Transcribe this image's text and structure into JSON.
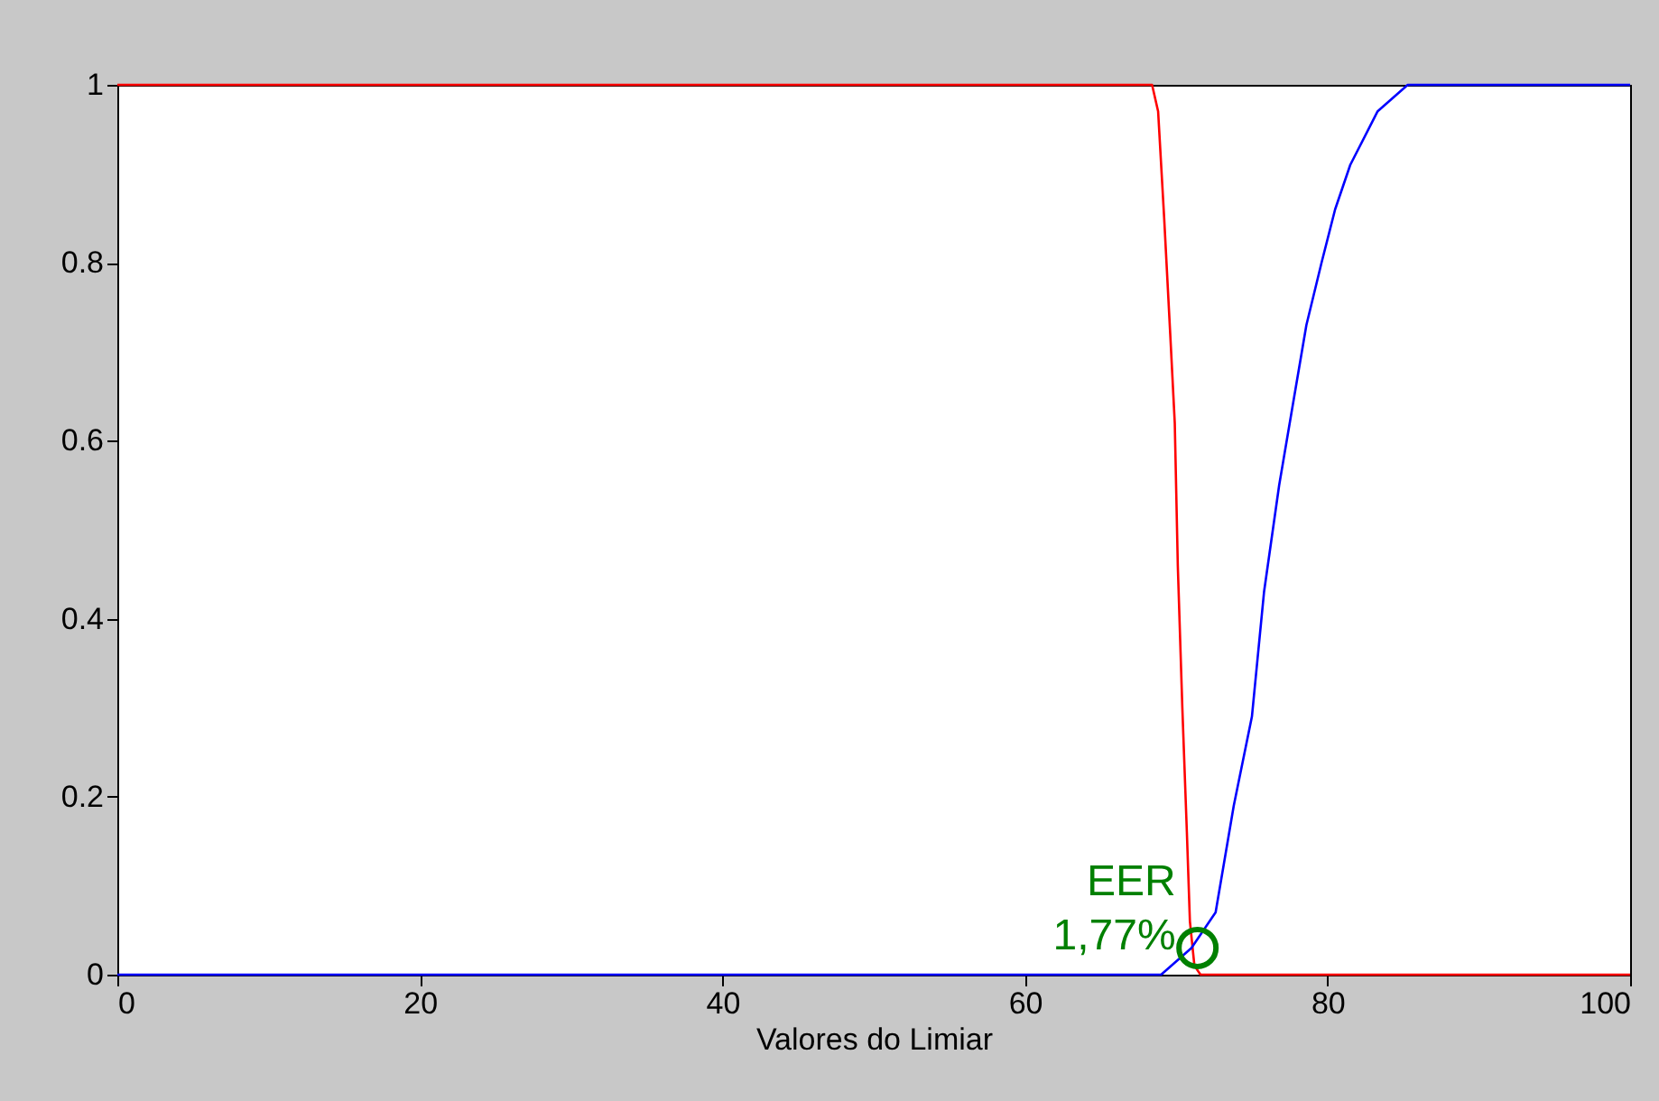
{
  "chart_data": {
    "type": "line",
    "xlabel": "Valores do Limiar",
    "xlim": [
      0,
      100
    ],
    "ylim": [
      0,
      1
    ],
    "xticks": [
      0,
      20,
      40,
      60,
      80,
      100
    ],
    "yticks": [
      0,
      0.2,
      0.4,
      0.6,
      0.8,
      1
    ],
    "grid": false,
    "series": [
      {
        "color": "#ff0000",
        "x": [
          0,
          68.4,
          68.8,
          69.2,
          69.6,
          69.9,
          70.1,
          70.4,
          70.7,
          70.9,
          71.2,
          71.6,
          100
        ],
        "values": [
          1,
          1,
          0.97,
          0.85,
          0.72,
          0.62,
          0.46,
          0.3,
          0.16,
          0.06,
          0.01,
          0,
          0
        ]
      },
      {
        "color": "#0000ff",
        "x": [
          0,
          69,
          71,
          72.6,
          73.8,
          75,
          75.8,
          76.8,
          77.6,
          78.6,
          79.6,
          80.5,
          81.5,
          83.3,
          85.3,
          86.9,
          100
        ],
        "values": [
          0,
          0,
          0.03,
          0.07,
          0.19,
          0.29,
          0.43,
          0.55,
          0.63,
          0.73,
          0.8,
          0.86,
          0.91,
          0.97,
          1,
          1,
          1
        ]
      },
      {
        "type": "scatter",
        "marker": "circle",
        "color": "#008000",
        "x": [
          71.4
        ],
        "values": [
          0.03
        ]
      }
    ],
    "annotations": [
      {
        "text": "EER\n1,77%",
        "x": 71.4,
        "y": 0.03
      }
    ]
  }
}
